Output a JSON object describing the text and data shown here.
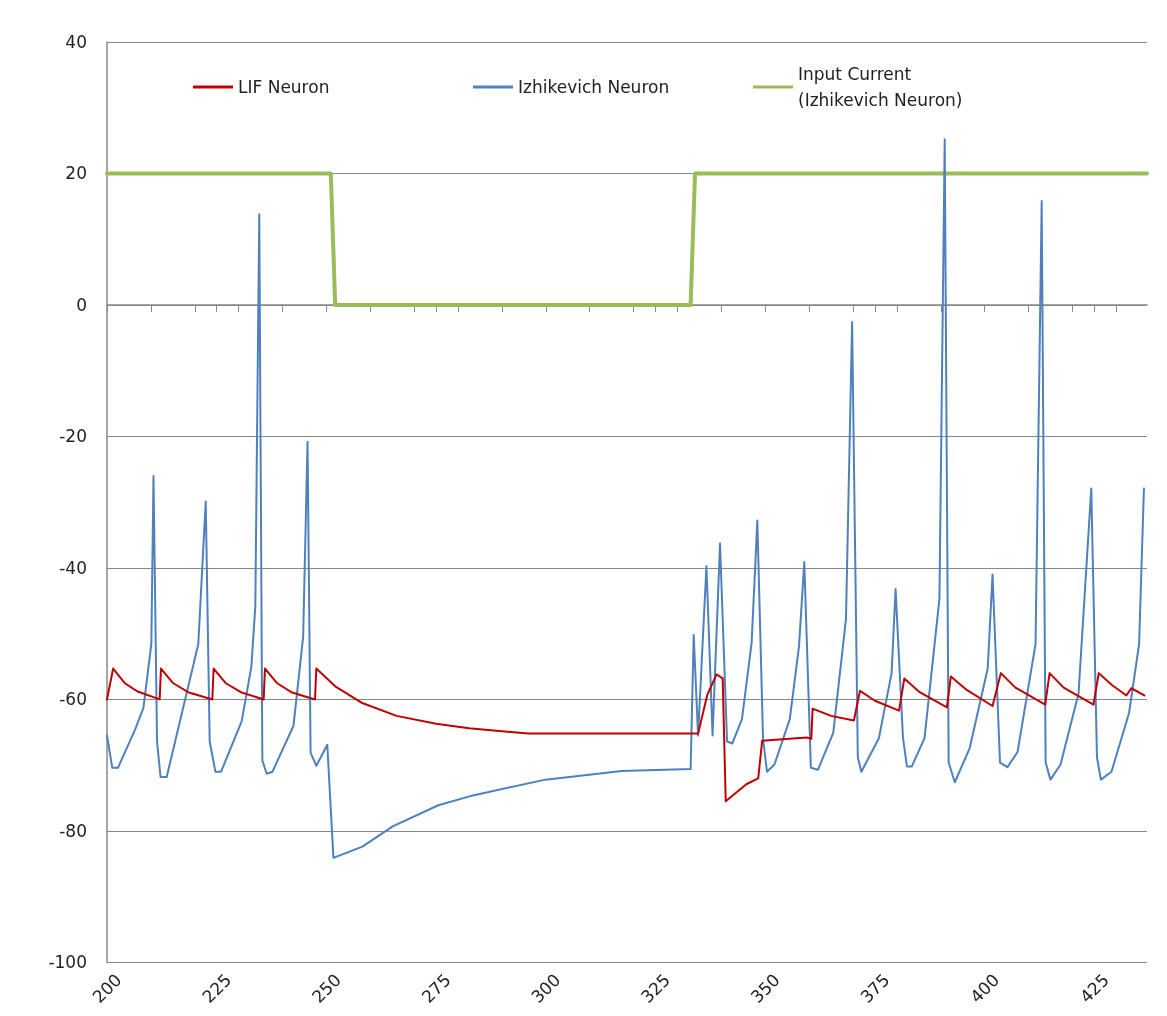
{
  "chart_data": {
    "type": "line",
    "xlim": [
      200,
      437
    ],
    "ylim": [
      -100,
      40
    ],
    "xticks": [
      200,
      {
        "value": 210,
        "label": null
      },
      {
        "value": 220,
        "label": null
      },
      225,
      {
        "value": 230,
        "label": null
      },
      {
        "value": 240,
        "label": null
      },
      250,
      {
        "value": 260,
        "label": null
      },
      {
        "value": 270,
        "label": null
      },
      275,
      {
        "value": 280,
        "label": null
      },
      {
        "value": 290,
        "label": null
      },
      300,
      {
        "value": 310,
        "label": null
      },
      {
        "value": 320,
        "label": null
      },
      325,
      {
        "value": 330,
        "label": null
      },
      {
        "value": 340,
        "label": null
      },
      350,
      {
        "value": 360,
        "label": null
      },
      {
        "value": 370,
        "label": null
      },
      375,
      {
        "value": 380,
        "label": null
      },
      {
        "value": 390,
        "label": null
      },
      400,
      {
        "value": 410,
        "label": null
      },
      {
        "value": 420,
        "label": null
      },
      425,
      {
        "value": 430,
        "label": null
      }
    ],
    "yticks": [
      -100,
      -80,
      -60,
      -40,
      -20,
      0,
      20,
      40
    ],
    "grid": "y",
    "legend": "top",
    "marker": "none",
    "line_style": "solid",
    "series": [
      {
        "name": "LIF Neuron",
        "color": "#c00000",
        "x": [
          200,
          201.4,
          204,
          207,
          212,
          212.3,
          215,
          218.5,
          224,
          224.3,
          227,
          230.5,
          235.7,
          236,
          238.7,
          242,
          247.4,
          247.7,
          252,
          258,
          266,
          275,
          282.5,
          296,
          334.7,
          336.8,
          338.9,
          340.3,
          341,
          345.7,
          348.4,
          349.3,
          359.5,
          360.5,
          360.8,
          365,
          370.2,
          371.6,
          375,
          380.5,
          381.7,
          385,
          391.4,
          392.3,
          396,
          401.8,
          403.7,
          407,
          413.8,
          414.8,
          418,
          424.8,
          426,
          429,
          432.3,
          433.4,
          436.4
        ],
        "values": [
          -60,
          -55.3,
          -57.5,
          -58.8,
          -60,
          -55.3,
          -57.5,
          -58.9,
          -60,
          -55.3,
          -57.5,
          -58.9,
          -60,
          -55.3,
          -57.5,
          -58.9,
          -60,
          -55.3,
          -58,
          -60.5,
          -62.5,
          -63.7,
          -64.4,
          -65.2,
          -65.2,
          -59.3,
          -56.2,
          -56.8,
          -75.5,
          -72.9,
          -72,
          -66.3,
          -65.8,
          -66,
          -61.4,
          -62.5,
          -63.2,
          -58.7,
          -60.2,
          -61.7,
          -56.8,
          -58.8,
          -61.2,
          -56.5,
          -58.6,
          -61,
          -56,
          -58.2,
          -60.8,
          -56,
          -58.2,
          -60.8,
          -56,
          -57.8,
          -59.4,
          -58.3,
          -59.4
        ]
      },
      {
        "name": "Izhikevich Neuron",
        "color": "#4f81bd",
        "x": [
          200,
          201.2,
          202.5,
          206.4,
          208.3,
          210.1,
          210.6,
          211.4,
          212.2,
          213.6,
          220.8,
          222.5,
          223.4,
          224.7,
          226,
          230.7,
          232.9,
          233.8,
          234.7,
          235.4,
          236.4,
          237.7,
          242.5,
          244.7,
          245.7,
          246.4,
          247.7,
          250.2,
          251.6,
          258.2,
          265.1,
          275.5,
          283.4,
          299.9,
          317.3,
          333,
          333.7,
          334.7,
          336.6,
          338,
          339.7,
          341.3,
          342.5,
          344.7,
          346.9,
          348.2,
          349.5,
          350.4,
          352.1,
          355.6,
          357.7,
          358.9,
          360.4,
          362,
          365.5,
          368.4,
          369.8,
          371.1,
          371.9,
          375.9,
          378.8,
          379.7,
          381.4,
          382.3,
          383.4,
          386.3,
          389.7,
          390.9,
          391.8,
          393.2,
          396.6,
          400.7,
          401.8,
          403.5,
          405.2,
          407.5,
          411.6,
          413,
          413.9,
          415,
          417.3,
          421.4,
          424.3,
          425.6,
          426.5,
          428.9,
          432.9,
          435.2,
          436.3
        ],
        "values": [
          -65.5,
          -70.4,
          -70.4,
          -64.6,
          -61.3,
          -51.6,
          -26,
          -66.4,
          -71.8,
          -71.8,
          -51.6,
          -29.9,
          -66.4,
          -71,
          -71,
          -63.3,
          -55,
          -45.8,
          13.8,
          -69.3,
          -71.3,
          -71,
          -64,
          -50.5,
          -20.8,
          -68.1,
          -70.1,
          -66.9,
          -84.1,
          -82.4,
          -79.3,
          -76.1,
          -74.6,
          -72.2,
          -70.9,
          -70.6,
          -50.2,
          -65.5,
          -39.7,
          -65.5,
          -36.3,
          -66.4,
          -66.7,
          -63,
          -51.4,
          -32.8,
          -66,
          -71,
          -69.9,
          -63,
          -51.9,
          -39.1,
          -70.4,
          -70.7,
          -65.1,
          -47.8,
          -2.6,
          -68.8,
          -71,
          -65.9,
          -56,
          -43.2,
          -65.9,
          -70.2,
          -70.2,
          -65.9,
          -44.7,
          25.2,
          -69.6,
          -72.6,
          -67.4,
          -55.3,
          -41,
          -69.6,
          -70.3,
          -68,
          -51.6,
          15.8,
          -69.6,
          -72.2,
          -69.9,
          -59.1,
          -27.9,
          -68.8,
          -72.2,
          -71,
          -62.1,
          -51.6,
          -27.9
        ]
      },
      {
        "name": "Input Current (Izhikevich Neuron)",
        "color": "#9bbb59",
        "x": [
          200,
          251,
          252,
          333,
          334,
          437
        ],
        "values": [
          20,
          20,
          0,
          0,
          20,
          20
        ]
      }
    ]
  }
}
